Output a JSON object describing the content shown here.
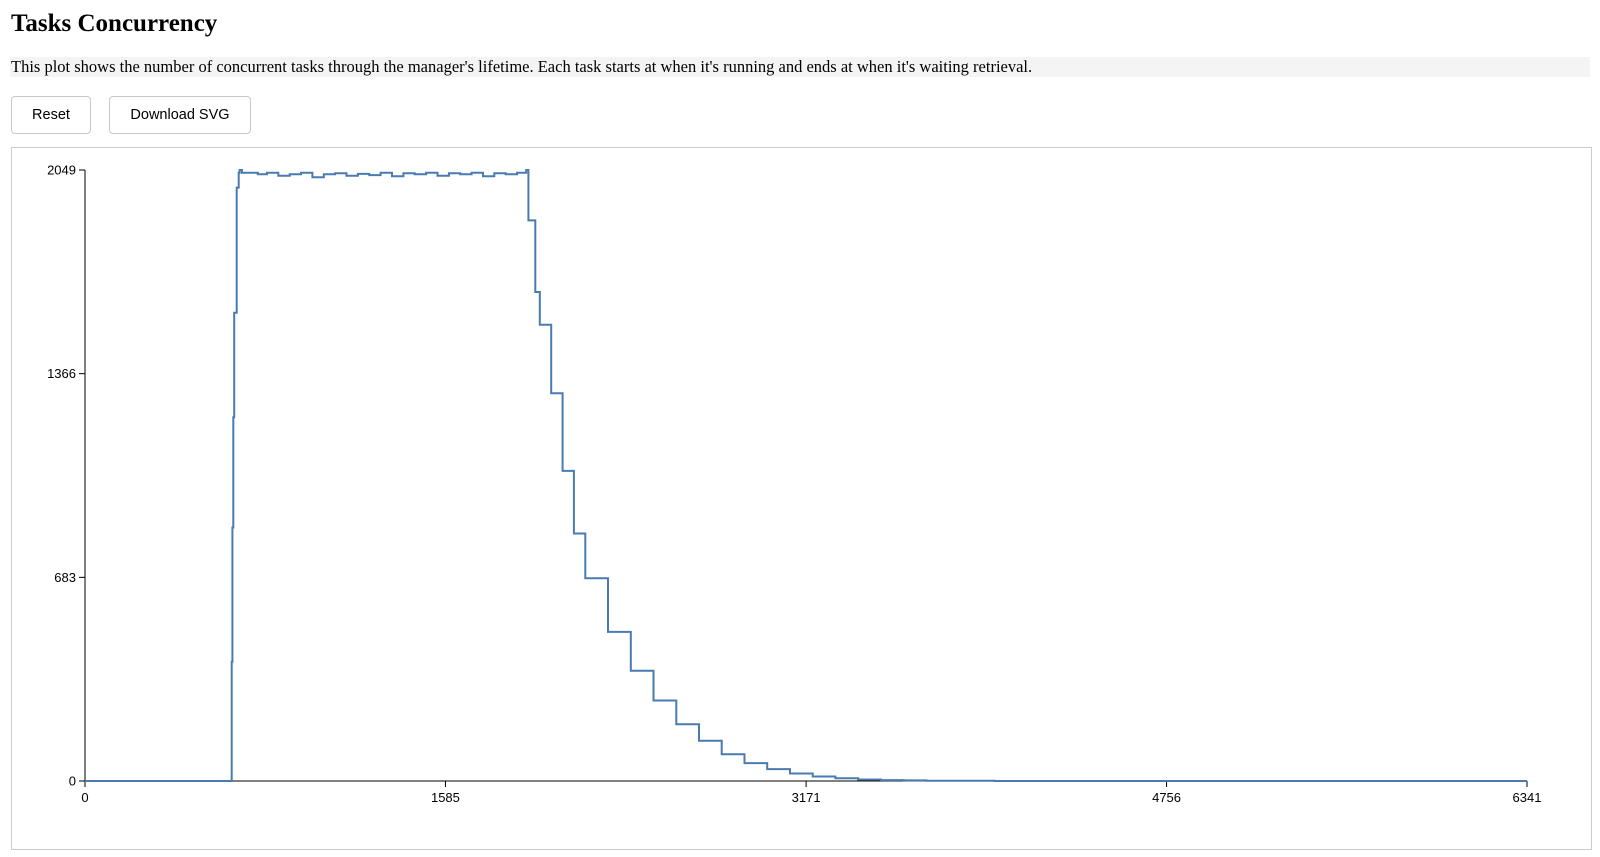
{
  "page": {
    "title": "Tasks Concurrency",
    "description": "This plot shows the number of concurrent tasks through the manager's lifetime. Each task starts at when it's running and ends at when it's waiting retrieval."
  },
  "toolbar": {
    "reset_label": "Reset",
    "download_label": "Download SVG"
  },
  "chart_data": {
    "type": "line",
    "title": "",
    "xlabel": "",
    "ylabel": "",
    "xlim": [
      0,
      6341
    ],
    "ylim": [
      0,
      2049
    ],
    "x_ticks": [
      "0",
      "1585",
      "3171",
      "4756",
      "6341"
    ],
    "y_ticks": [
      "0",
      "683",
      "1366",
      "2049"
    ],
    "line_color": "#4a7bb0",
    "grid": false,
    "step": true,
    "x": [
      0,
      640,
      645,
      648,
      652,
      656,
      661,
      667,
      672,
      676,
      680,
      690,
      760,
      800,
      850,
      900,
      950,
      1000,
      1050,
      1100,
      1150,
      1200,
      1250,
      1300,
      1350,
      1400,
      1450,
      1500,
      1550,
      1600,
      1650,
      1700,
      1750,
      1800,
      1850,
      1900,
      1940,
      1950,
      1980,
      2000,
      2050,
      2100,
      2150,
      2200,
      2300,
      2400,
      2500,
      2600,
      2700,
      2800,
      2900,
      3000,
      3100,
      3200,
      3300,
      3400,
      3500,
      3600,
      3700,
      3800,
      4000,
      4300,
      4600,
      5000,
      5500,
      6341
    ],
    "y": [
      0,
      0,
      400,
      850,
      1220,
      1570,
      1570,
      1990,
      1990,
      2040,
      2049,
      2040,
      2035,
      2040,
      2030,
      2035,
      2040,
      2025,
      2035,
      2038,
      2030,
      2036,
      2032,
      2040,
      2028,
      2038,
      2035,
      2040,
      2030,
      2038,
      2035,
      2040,
      2028,
      2038,
      2035,
      2040,
      2049,
      1880,
      1640,
      1530,
      1300,
      1040,
      830,
      680,
      500,
      370,
      270,
      190,
      135,
      90,
      60,
      40,
      25,
      15,
      9,
      5,
      3,
      2,
      1,
      1,
      0,
      0,
      0,
      0,
      0,
      0
    ]
  }
}
